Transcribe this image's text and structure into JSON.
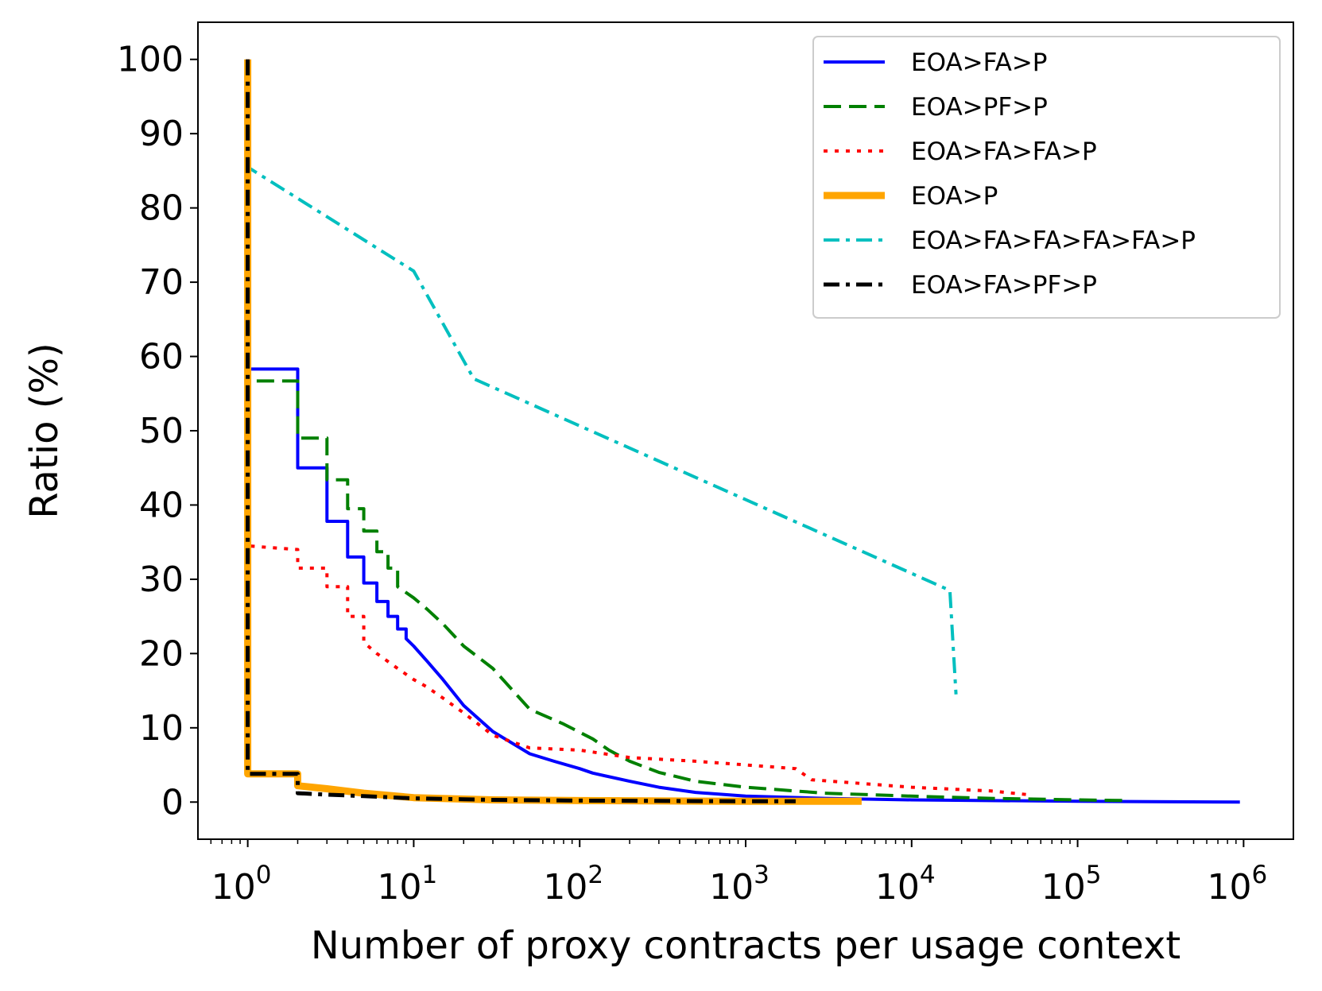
{
  "chart_data": {
    "type": "line",
    "title": "",
    "xlabel": "Number of proxy contracts per usage context",
    "ylabel": "Ratio (%)",
    "xscale": "log",
    "xlim_exponent": [
      -0.3,
      6.3
    ],
    "ylim": [
      -5,
      105
    ],
    "x_ticks": [
      {
        "base": "10",
        "exp": "0",
        "value": 1
      },
      {
        "base": "10",
        "exp": "1",
        "value": 10
      },
      {
        "base": "10",
        "exp": "2",
        "value": 100
      },
      {
        "base": "10",
        "exp": "3",
        "value": 1000
      },
      {
        "base": "10",
        "exp": "4",
        "value": 10000
      },
      {
        "base": "10",
        "exp": "5",
        "value": 100000
      },
      {
        "base": "10",
        "exp": "6",
        "value": 1000000
      }
    ],
    "y_ticks": [
      0,
      10,
      20,
      30,
      40,
      50,
      60,
      70,
      80,
      90,
      100
    ],
    "y_tick_labels": [
      "0",
      "10",
      "20",
      "30",
      "40",
      "50",
      "60",
      "70",
      "80",
      "90",
      "100"
    ],
    "legend": {
      "placement": "top-right",
      "entries": [
        "EOA>FA>P",
        "EOA>PF>P",
        "EOA>FA>FA>P",
        "EOA>P",
        "EOA>FA>FA>FA>FA>P",
        "EOA>FA>PF>P"
      ]
    },
    "series": [
      {
        "name": "EOA>FA>P",
        "color": "#0000ff",
        "style": "solid",
        "width": 4,
        "x": [
          1,
          1,
          2,
          2,
          3,
          3,
          4,
          4,
          5,
          5,
          6,
          6,
          7,
          7,
          8,
          8,
          9,
          9,
          10,
          12,
          15,
          20,
          30,
          50,
          70,
          100,
          120,
          200,
          300,
          500,
          1000,
          3000,
          10000,
          100000,
          950000
        ],
        "y": [
          100,
          58.3,
          58.3,
          45,
          45,
          37.8,
          37.8,
          33,
          33,
          29.5,
          29.5,
          27,
          27,
          25,
          25,
          23.3,
          23.3,
          22,
          21,
          19,
          16.5,
          13,
          9.5,
          6.5,
          5.5,
          4.5,
          3.9,
          2.8,
          2,
          1.3,
          0.8,
          0.5,
          0.3,
          0.1,
          0
        ]
      },
      {
        "name": "EOA>PF>P",
        "color": "#008000",
        "style": "dashed",
        "width": 4,
        "x": [
          1,
          1,
          2,
          2,
          3,
          3,
          4,
          4,
          5,
          5,
          6,
          6,
          7,
          7,
          8,
          8,
          10,
          12,
          15,
          20,
          30,
          50,
          80,
          120,
          150,
          200,
          300,
          500,
          1000,
          3000,
          10000,
          30000,
          100000,
          200000
        ],
        "y": [
          100,
          56.7,
          56.7,
          49,
          49,
          43.4,
          43.4,
          39.5,
          39.5,
          36.5,
          36.5,
          33.7,
          33.7,
          31.5,
          31.5,
          29,
          27.5,
          26,
          24,
          21,
          18,
          12.5,
          10.5,
          8.5,
          7,
          5.5,
          4,
          2.8,
          2,
          1.2,
          0.8,
          0.5,
          0.3,
          0.2
        ]
      },
      {
        "name": "EOA>FA>FA>P",
        "color": "#ff0000",
        "style": "dotted",
        "width": 4,
        "x": [
          1,
          1,
          2,
          2,
          3,
          3,
          4,
          4,
          5,
          5,
          6,
          8,
          10,
          12,
          15,
          20,
          30,
          50,
          100,
          200,
          500,
          1000,
          2000,
          2500,
          5000,
          10000,
          30000,
          50000
        ],
        "y": [
          100,
          34.5,
          34,
          31.5,
          31.5,
          29,
          29,
          25,
          25,
          21.5,
          20,
          18,
          16.5,
          15.5,
          14,
          12,
          9,
          7.3,
          7,
          6,
          5.5,
          5,
          4.5,
          3,
          2.5,
          2,
          1.5,
          1
        ]
      },
      {
        "name": "EOA>P",
        "color": "#ffa500",
        "style": "solid",
        "width": 9,
        "x": [
          1,
          1,
          2,
          2,
          3,
          5,
          10,
          30,
          100,
          1000,
          5000
        ],
        "y": [
          100,
          3.8,
          3.8,
          2.2,
          1.8,
          1.2,
          0.6,
          0.3,
          0.2,
          0.1,
          0.1
        ]
      },
      {
        "name": "EOA>FA>FA>FA>FA>P",
        "color": "#00bfbf",
        "style": "dashdot",
        "width": 4,
        "x": [
          1,
          1,
          10,
          23,
          17000,
          18500
        ],
        "y": [
          95,
          85.5,
          71.5,
          57,
          28.5,
          14.5
        ]
      },
      {
        "name": "EOA>FA>PF>P",
        "color": "#000000",
        "style": "dashdot",
        "width": 5,
        "x": [
          1,
          1,
          2,
          2,
          3,
          5,
          10,
          30,
          100,
          1000,
          2000
        ],
        "y": [
          100,
          3.8,
          3.8,
          1.2,
          1,
          0.8,
          0.5,
          0.3,
          0.2,
          0.1,
          0.1
        ]
      }
    ]
  }
}
